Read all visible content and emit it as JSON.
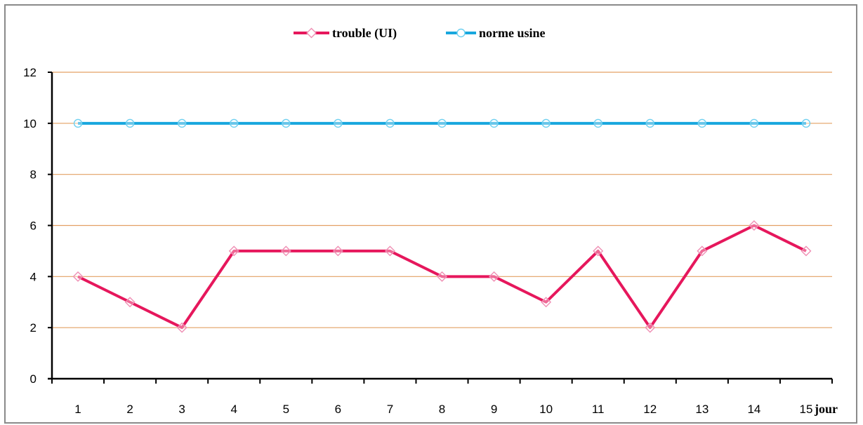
{
  "chart_data": {
    "type": "line",
    "x": [
      1,
      2,
      3,
      4,
      5,
      6,
      7,
      8,
      9,
      10,
      11,
      12,
      13,
      14,
      15
    ],
    "xlabel": "jour",
    "ylabel": "",
    "ylim": [
      0,
      12
    ],
    "yticks": [
      0,
      2,
      4,
      6,
      8,
      10,
      12
    ],
    "grid": true,
    "grid_color": "#e3a063",
    "legend_position": "top",
    "series": [
      {
        "name": "trouble (UI)",
        "color": "#e6175c",
        "marker": "diamond",
        "values": [
          4,
          3,
          2,
          5,
          5,
          5,
          5,
          4,
          4,
          3,
          5,
          2,
          5,
          6,
          5
        ]
      },
      {
        "name": "norme usine",
        "color": "#18a7de",
        "marker": "circle",
        "values": [
          10,
          10,
          10,
          10,
          10,
          10,
          10,
          10,
          10,
          10,
          10,
          10,
          10,
          10,
          10
        ]
      }
    ]
  }
}
